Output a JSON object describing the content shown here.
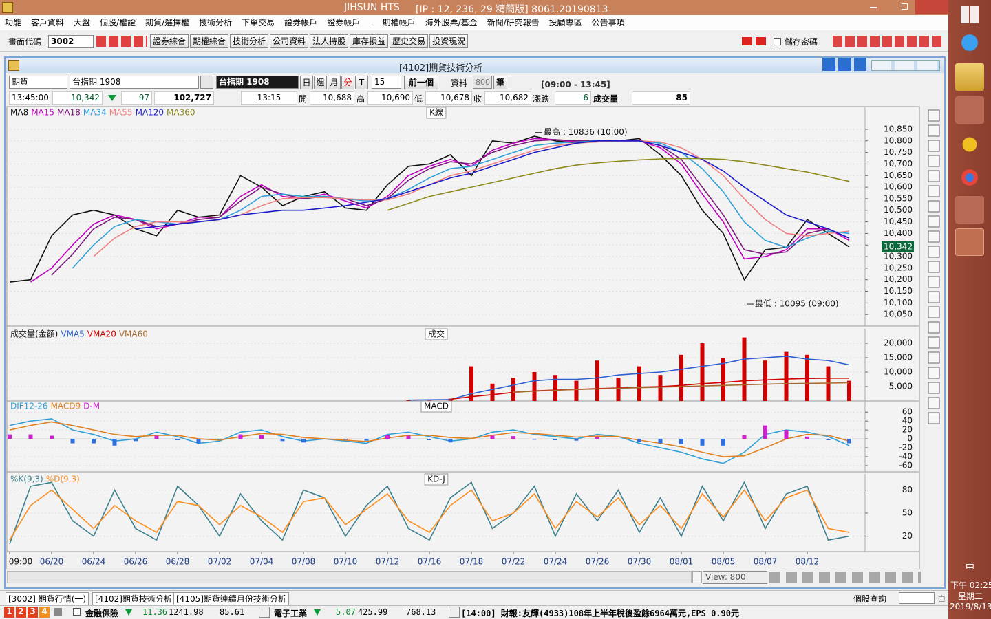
{
  "window": {
    "title": "JIHSUN HTS",
    "connection": "[IP : 12, 236, 29 精簡版] 8061.20190813"
  },
  "menu": [
    "功能",
    "客戶資料",
    "大盤",
    "個股/權證",
    "期貨/選擇權",
    "技術分析",
    "下單交易",
    "證券帳戶",
    "證券帳戶",
    "-",
    "期權帳戶",
    "海外股票/基金",
    "新聞/研究報告",
    "投顧專區",
    "公告事項"
  ],
  "toolbar": {
    "code_label": "畫面代碼",
    "code": "3002",
    "buttons": [
      "證券綜合",
      "期權綜合",
      "技術分析",
      "公司資料",
      "法人持股",
      "庫存損益",
      "歷史交易",
      "投資現況"
    ],
    "save_password": "儲存密碼"
  },
  "subwindow": {
    "title": "[4102]期貨技術分析"
  },
  "controls": {
    "market": "期貨",
    "symbol": "台指期 1908",
    "symbol_display": "台指期 1908",
    "periods": [
      "日",
      "週",
      "月",
      "分",
      "T"
    ],
    "interval": 15,
    "prev": "前一個",
    "data_label": "資料",
    "data_count": 800,
    "data_unit": "筆",
    "session": "[09:00 - 13:45]"
  },
  "quote": {
    "time": "13:45:00",
    "price": "10,342",
    "change": 97,
    "amount": "102,727",
    "bar_time": "13:15",
    "open_label": "開",
    "open": "10,688",
    "high_label": "高",
    "high": "10,690",
    "low_label": "低",
    "low": "10,678",
    "close_label": "收",
    "close": "10,682",
    "diff_label": "漲跌",
    "diff": -6,
    "volume_label": "成交量",
    "volume": 85
  },
  "chart_data": [
    {
      "type": "line",
      "title": "K線",
      "ylim": [
        10000,
        10945
      ],
      "yticks": [
        {
          "value": 10050,
          "label": "10,050"
        },
        {
          "value": 10100,
          "label": "10,100"
        },
        {
          "value": 10150,
          "label": "10,150"
        },
        {
          "value": 10200,
          "label": "10,200"
        },
        {
          "value": 10250,
          "label": "10,250"
        },
        {
          "value": 10300,
          "label": "10,300"
        },
        {
          "value": 10350,
          "label": "10,350"
        },
        {
          "value": 10400,
          "label": "10,400"
        },
        {
          "value": 10450,
          "label": "10,450"
        },
        {
          "value": 10500,
          "label": "10,500"
        },
        {
          "value": 10550,
          "label": "10,550"
        },
        {
          "value": 10600,
          "label": "10,600"
        },
        {
          "value": 10650,
          "label": "10,650"
        },
        {
          "value": 10700,
          "label": "10,700"
        },
        {
          "value": 10750,
          "label": "10,750"
        },
        {
          "value": 10800,
          "label": "10,800"
        },
        {
          "value": 10850,
          "label": "10,850"
        }
      ],
      "series": [
        {
          "name": "MA8",
          "color": "#111111",
          "values": [
            10190,
            10200,
            10390,
            10480,
            10500,
            10480,
            10420,
            10390,
            10500,
            10470,
            10480,
            10650,
            10600,
            10520,
            10560,
            10580,
            10510,
            10500,
            10610,
            10690,
            10700,
            10740,
            10650,
            10800,
            10790,
            10820,
            10800,
            10790,
            10800,
            10800,
            10810,
            10740,
            10650,
            10500,
            10400,
            10200,
            10330,
            10340,
            10460,
            10400,
            10342
          ]
        },
        {
          "name": "MA15",
          "color": "#c000c0",
          "values": [
            null,
            10190,
            10250,
            10350,
            10440,
            10480,
            10460,
            10420,
            10440,
            10470,
            10470,
            10560,
            10610,
            10560,
            10550,
            10570,
            10540,
            10510,
            10560,
            10650,
            10690,
            10720,
            10690,
            10760,
            10790,
            10810,
            10805,
            10795,
            10800,
            10800,
            10800,
            10770,
            10700,
            10570,
            10450,
            10290,
            10300,
            10330,
            10420,
            10420,
            10370
          ]
        },
        {
          "name": "MA18",
          "color": "#7a1a7a",
          "values": [
            null,
            null,
            10220,
            10310,
            10420,
            10470,
            10460,
            10430,
            10440,
            10460,
            10470,
            10540,
            10600,
            10570,
            10550,
            10560,
            10550,
            10520,
            10550,
            10630,
            10680,
            10710,
            10700,
            10750,
            10780,
            10800,
            10805,
            10800,
            10800,
            10800,
            10800,
            10780,
            10720,
            10600,
            10480,
            10330,
            10310,
            10320,
            10400,
            10420,
            10380
          ]
        },
        {
          "name": "MA34",
          "color": "#2f9fd8",
          "values": [
            null,
            null,
            null,
            10250,
            10350,
            10430,
            10460,
            10450,
            10440,
            10450,
            10460,
            10500,
            10560,
            10570,
            10560,
            10560,
            10550,
            10540,
            10550,
            10590,
            10640,
            10680,
            10690,
            10720,
            10750,
            10780,
            10790,
            10795,
            10800,
            10800,
            10800,
            10790,
            10750,
            10680,
            10580,
            10450,
            10370,
            10340,
            10380,
            10410,
            10400
          ]
        },
        {
          "name": "MA55",
          "color": "#f08080",
          "values": [
            null,
            null,
            null,
            null,
            10300,
            10380,
            10430,
            10450,
            10450,
            10450,
            10460,
            10480,
            10520,
            10550,
            10555,
            10555,
            10550,
            10545,
            10545,
            10570,
            10610,
            10650,
            10670,
            10700,
            10730,
            10760,
            10780,
            10790,
            10795,
            10800,
            10800,
            10795,
            10770,
            10720,
            10650,
            10550,
            10460,
            10400,
            10390,
            10400,
            10410
          ]
        },
        {
          "name": "MA120",
          "color": "#1a1ac8",
          "values": [
            null,
            null,
            null,
            null,
            null,
            null,
            10420,
            10430,
            10440,
            10450,
            10460,
            10480,
            10490,
            10500,
            10500,
            10510,
            10520,
            10535,
            10550,
            10580,
            10610,
            10640,
            10660,
            10690,
            10720,
            10750,
            10770,
            10790,
            10800,
            10800,
            10800,
            10780,
            10750,
            10720,
            10670,
            10600,
            10540,
            10480,
            10450,
            10420,
            10380
          ]
        },
        {
          "name": "MA360",
          "color": "#8c8a1a",
          "values": [
            null,
            null,
            null,
            null,
            null,
            null,
            null,
            null,
            null,
            null,
            null,
            null,
            null,
            null,
            null,
            null,
            null,
            null,
            10500,
            10530,
            10560,
            10580,
            10600,
            10620,
            10640,
            10660,
            10680,
            10695,
            10705,
            10712,
            10718,
            10722,
            10724,
            10724,
            10720,
            10710,
            10695,
            10680,
            10665,
            10645,
            10625
          ]
        }
      ],
      "annotations": [
        {
          "text": "最高 : 10836 (10:00)",
          "value": 10836
        },
        {
          "text": "最低 : 10095 (09:00)",
          "value": 10095
        }
      ],
      "last_price": {
        "value": 10342,
        "label": "10,342"
      }
    },
    {
      "type": "bar",
      "title": "成交",
      "label": "成交量(金額)",
      "color": "#d00000",
      "ylim": [
        0,
        25000
      ],
      "yticks": [
        {
          "value": 5000,
          "label": "5,000"
        },
        {
          "value": 10000,
          "label": "10,000"
        },
        {
          "value": 15000,
          "label": "15,000"
        },
        {
          "value": 20000,
          "label": "20,000"
        }
      ],
      "values": [
        0,
        0,
        0,
        0,
        0,
        0,
        0,
        0,
        0,
        0,
        0,
        0,
        0,
        0,
        0,
        0,
        0,
        0,
        0,
        300,
        500,
        800,
        12000,
        6000,
        8000,
        10000,
        9000,
        7000,
        14000,
        8000,
        12000,
        9000,
        16000,
        20000,
        15000,
        22000,
        14000,
        17000,
        16000,
        12000,
        7000
      ],
      "series": [
        {
          "name": "VMA5",
          "color": "#2a5fd0",
          "values": [
            null,
            null,
            null,
            null,
            null,
            null,
            null,
            null,
            null,
            null,
            null,
            null,
            null,
            null,
            null,
            null,
            null,
            null,
            null,
            300,
            400,
            500,
            2500,
            4000,
            5500,
            7000,
            7500,
            7500,
            8000,
            9000,
            9500,
            10000,
            11000,
            12000,
            13000,
            14500,
            15000,
            15500,
            14500,
            14000,
            12500
          ]
        },
        {
          "name": "VMA20",
          "color": "#d00000",
          "values": [
            null,
            null,
            null,
            null,
            null,
            null,
            null,
            null,
            null,
            null,
            null,
            null,
            null,
            null,
            null,
            null,
            null,
            null,
            null,
            null,
            null,
            600,
            1500,
            2200,
            3000,
            3500,
            3800,
            4000,
            4300,
            4500,
            4800,
            5000,
            5400,
            6000,
            6400,
            7000,
            7300,
            7600,
            7800,
            7900,
            7900
          ]
        },
        {
          "name": "VMA60",
          "color": "#a86a30",
          "values": [
            null,
            null,
            null,
            null,
            null,
            null,
            null,
            null,
            null,
            null,
            null,
            null,
            null,
            null,
            null,
            null,
            null,
            null,
            null,
            null,
            null,
            null,
            null,
            null,
            3000,
            3400,
            3700,
            4000,
            4200,
            4400,
            4600,
            4800,
            5000,
            5200,
            5400,
            5600,
            5800,
            6000,
            6100,
            6200,
            6300
          ]
        }
      ]
    },
    {
      "type": "line",
      "title": "MACD",
      "ylim": [
        -74,
        85
      ],
      "yticks": [
        60,
        40,
        20,
        0,
        -20,
        -40,
        -60
      ],
      "negative_color": "#2f6fe0",
      "series": [
        {
          "name": "DIF12-26",
          "color": "#2f9fd8",
          "values": [
            30,
            40,
            45,
            20,
            10,
            -5,
            0,
            15,
            5,
            -10,
            -5,
            15,
            20,
            5,
            -5,
            0,
            -5,
            -10,
            10,
            15,
            5,
            -5,
            0,
            15,
            20,
            10,
            5,
            0,
            10,
            5,
            -10,
            -20,
            -30,
            -45,
            -55,
            -30,
            10,
            20,
            15,
            5,
            -15
          ]
        },
        {
          "name": "MACD9",
          "color": "#e08020",
          "values": [
            20,
            30,
            38,
            30,
            20,
            10,
            5,
            8,
            8,
            0,
            -3,
            5,
            12,
            10,
            3,
            0,
            -3,
            -6,
            2,
            8,
            8,
            3,
            1,
            8,
            14,
            12,
            8,
            4,
            6,
            5,
            -3,
            -10,
            -18,
            -30,
            -40,
            -38,
            -20,
            0,
            10,
            8,
            -5
          ]
        },
        {
          "name": "D-M",
          "color": "#d020d0",
          "type": "bar",
          "values": [
            10,
            10,
            7,
            -10,
            -10,
            -15,
            -5,
            7,
            -3,
            -10,
            -2,
            10,
            8,
            -5,
            -8,
            0,
            -2,
            -4,
            8,
            7,
            -3,
            -8,
            -1,
            7,
            6,
            -2,
            -3,
            -4,
            4,
            0,
            -7,
            -10,
            -12,
            -15,
            -15,
            8,
            30,
            20,
            5,
            -3,
            -10
          ]
        }
      ]
    },
    {
      "type": "line",
      "title": "KD-J",
      "ylim": [
        0,
        101
      ],
      "yticks": [
        80,
        50,
        20
      ],
      "categories": [
        "09:00",
        null,
        "06/20",
        null,
        "06/24",
        null,
        "06/26",
        null,
        "06/28",
        null,
        "07/02",
        null,
        "07/04",
        null,
        "07/08",
        null,
        "07/10",
        null,
        "07/12",
        null,
        "07/16",
        null,
        "07/18",
        null,
        "07/22",
        null,
        "07/24",
        null,
        "07/26",
        null,
        "07/30",
        null,
        "08/01",
        null,
        "08/05",
        null,
        "08/07",
        null,
        "08/12",
        null,
        null
      ],
      "series": [
        {
          "name": "%K(9,3)",
          "color": "#3b7f8c",
          "values": [
            10,
            85,
            90,
            40,
            20,
            80,
            30,
            15,
            85,
            60,
            20,
            75,
            40,
            15,
            80,
            70,
            20,
            60,
            85,
            30,
            15,
            70,
            90,
            30,
            50,
            85,
            20,
            75,
            40,
            80,
            25,
            70,
            20,
            85,
            40,
            90,
            30,
            75,
            85,
            15,
            20
          ]
        },
        {
          "name": "%D(9,3)",
          "color": "#ff8c1a",
          "values": [
            15,
            60,
            80,
            55,
            30,
            60,
            40,
            25,
            65,
            60,
            35,
            60,
            45,
            25,
            65,
            70,
            35,
            55,
            75,
            40,
            25,
            60,
            80,
            40,
            50,
            75,
            30,
            65,
            45,
            70,
            35,
            60,
            30,
            75,
            45,
            80,
            40,
            70,
            80,
            30,
            25
          ]
        }
      ]
    }
  ],
  "footer": {
    "view": "View: 800",
    "tabs": [
      "[3002] 期貨行情(一)",
      "[4102]期貨技術分析",
      "[4105]期貨連續月份技術分析"
    ],
    "search_label": "個股查詢",
    "search_suffix": "自",
    "page_buttons": [
      "1",
      "2",
      "3",
      "4"
    ],
    "sectors": [
      {
        "name": "金融保險",
        "change": 11.36,
        "index": 1241.98,
        "volume": 85.61
      },
      {
        "name": "電子工業",
        "change": 5.07,
        "index": 425.99,
        "volume": 768.13
      }
    ],
    "news": "[14:00] 財報:友輝(4933)108年上半年稅後盈餘6964萬元,EPS 0.90元"
  },
  "taskbar": {
    "ime": "中",
    "time": "下午 02:25",
    "weekday": "星期二",
    "date": "2019/8/13"
  }
}
